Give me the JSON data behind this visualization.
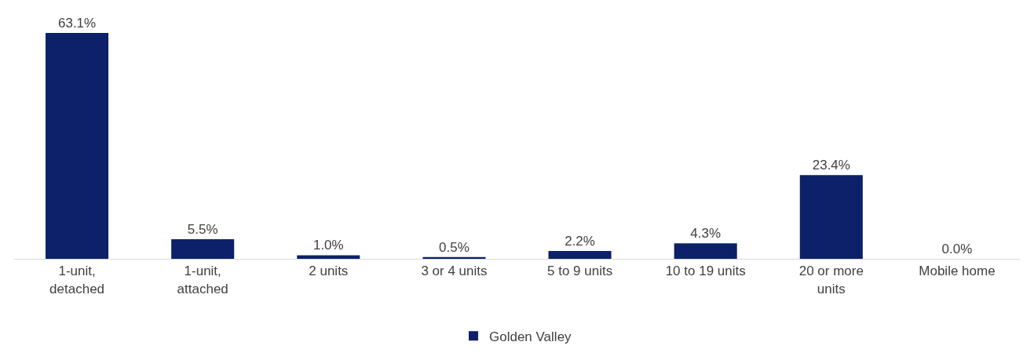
{
  "chart_data": {
    "type": "bar",
    "categories": [
      "1-unit, detached",
      "1-unit, attached",
      "2 units",
      "3 or 4 units",
      "5 to 9 units",
      "10 to 19 units",
      "20 or more units",
      "Mobile home"
    ],
    "series": [
      {
        "name": "Golden Valley",
        "color": "#0c2169",
        "values": [
          63.1,
          5.5,
          1.0,
          0.5,
          2.2,
          4.3,
          23.4,
          0.0
        ],
        "value_labels": [
          "63.1%",
          "5.5%",
          "1.0%",
          "0.5%",
          "2.2%",
          "4.3%",
          "23.4%",
          "0.0%"
        ]
      }
    ],
    "legend": "bottom"
  }
}
